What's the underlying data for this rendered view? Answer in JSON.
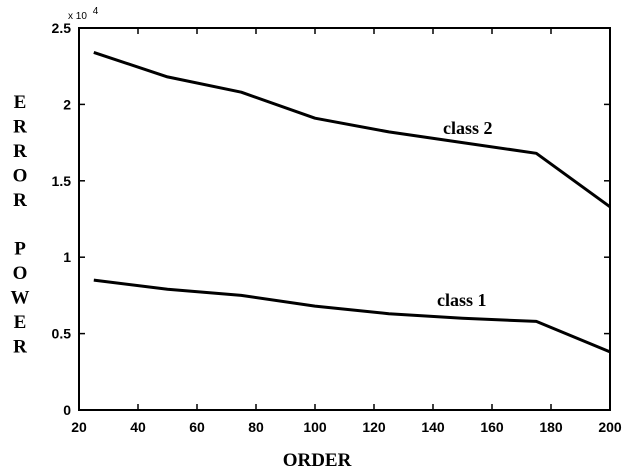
{
  "chart_data": {
    "type": "line",
    "xlabel": "ORDER",
    "ylabel": "ERROR POWER",
    "exponent_label": "x 10",
    "exponent_power": "4",
    "xlim": [
      20,
      200
    ],
    "ylim": [
      0,
      2.5
    ],
    "xticks": [
      20,
      40,
      60,
      80,
      100,
      120,
      140,
      160,
      180,
      200
    ],
    "yticks": [
      0,
      0.5,
      1,
      1.5,
      2,
      2.5
    ],
    "ytick_labels": [
      "0",
      "0.5",
      "1",
      "1.5",
      "2",
      "2.5"
    ],
    "grid": false,
    "series": [
      {
        "name": "class 2",
        "x": [
          25,
          50,
          75,
          100,
          125,
          150,
          175,
          200
        ],
        "y": [
          2.34,
          2.18,
          2.08,
          1.91,
          1.82,
          1.75,
          1.68,
          1.33
        ]
      },
      {
        "name": "class 1",
        "x": [
          25,
          50,
          75,
          100,
          125,
          150,
          175,
          200
        ],
        "y": [
          0.85,
          0.79,
          0.75,
          0.68,
          0.63,
          0.6,
          0.58,
          0.38
        ]
      }
    ]
  }
}
